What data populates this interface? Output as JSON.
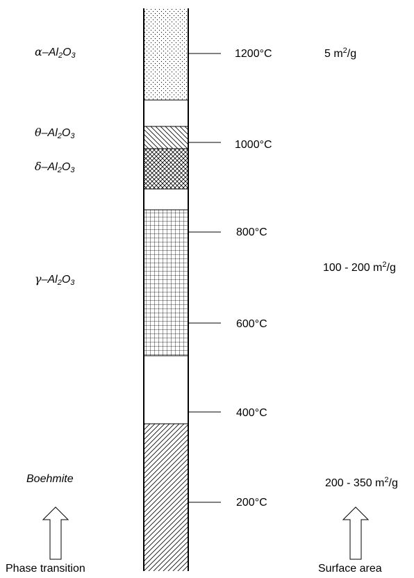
{
  "phases": [
    {
      "symbol": "α",
      "formula": "–Al",
      "sub": "2",
      "rest": "O",
      "sub2": "3"
    },
    {
      "symbol": "θ",
      "formula": "–Al",
      "sub": "2",
      "rest": "O",
      "sub2": "3"
    },
    {
      "symbol": "δ",
      "formula": "–Al",
      "sub": "2",
      "rest": "O",
      "sub2": "3"
    },
    {
      "symbol": "γ",
      "formula": "–Al",
      "sub": "2",
      "rest": "O",
      "sub2": "3"
    },
    {
      "name": "Boehmite"
    }
  ],
  "temperatures": [
    "1200°C",
    "1000°C",
    "800°C",
    "600°C",
    "400°C",
    "200°C"
  ],
  "surface_areas": [
    {
      "value": "5 m",
      "sup": "2",
      "unit": "/g"
    },
    {
      "value": "100 - 200 m",
      "sup": "2",
      "unit": "/g"
    },
    {
      "value": "200 - 350 m",
      "sup": "2",
      "unit": "/g"
    }
  ],
  "footer": {
    "left": "Phase transition",
    "right": "Surface area"
  }
}
